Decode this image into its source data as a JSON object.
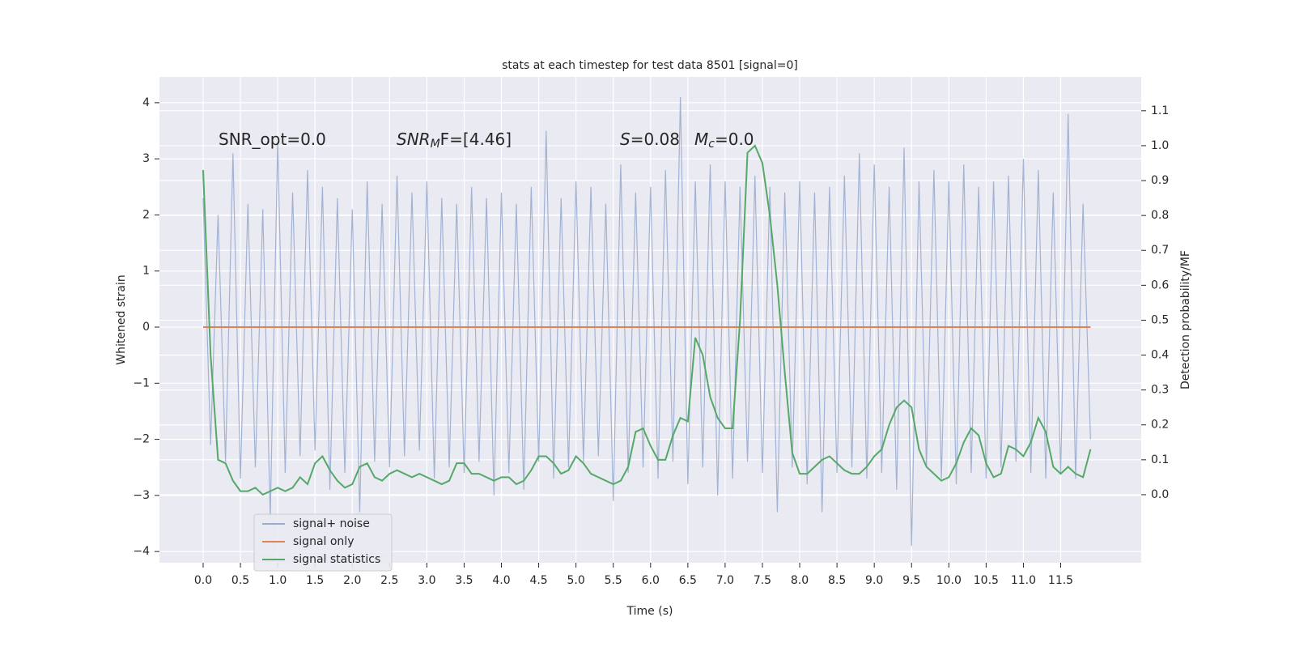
{
  "chart_data": {
    "type": "line",
    "title": "stats at each timestep for test data 8501 [signal=0]",
    "xlabel": "Time (s)",
    "ylabel": "Whitened strain",
    "y2label": "Detection probability/MF",
    "annotations": [
      {
        "text": "SNR_opt=0.0"
      },
      {
        "base": "SNR",
        "sub": "M",
        "rest": "F=[4.46]"
      },
      {
        "base": "S",
        "rest": "=0.08"
      },
      {
        "base": "M",
        "sub": "c",
        "rest": "=0.0"
      }
    ],
    "x": [
      0.0,
      0.1,
      0.2,
      0.3,
      0.4,
      0.5,
      0.6,
      0.7,
      0.8,
      0.9,
      1.0,
      1.1,
      1.2,
      1.3,
      1.4,
      1.5,
      1.6,
      1.7,
      1.8,
      1.9,
      2.0,
      2.1,
      2.2,
      2.3,
      2.4,
      2.5,
      2.6,
      2.7,
      2.8,
      2.9,
      3.0,
      3.1,
      3.2,
      3.3,
      3.4,
      3.5,
      3.6,
      3.7,
      3.8,
      3.9,
      4.0,
      4.1,
      4.2,
      4.3,
      4.4,
      4.5,
      4.6,
      4.7,
      4.8,
      4.9,
      5.0,
      5.1,
      5.2,
      5.3,
      5.4,
      5.5,
      5.6,
      5.7,
      5.8,
      5.9,
      6.0,
      6.1,
      6.2,
      6.3,
      6.4,
      6.5,
      6.6,
      6.7,
      6.8,
      6.9,
      7.0,
      7.1,
      7.2,
      7.3,
      7.4,
      7.5,
      7.6,
      7.7,
      7.8,
      7.9,
      8.0,
      8.1,
      8.2,
      8.3,
      8.4,
      8.5,
      8.6,
      8.7,
      8.8,
      8.9,
      9.0,
      9.1,
      9.2,
      9.3,
      9.4,
      9.5,
      9.6,
      9.7,
      9.8,
      9.9,
      10.0,
      10.1,
      10.2,
      10.3,
      10.4,
      10.5,
      10.6,
      10.7,
      10.8,
      10.9,
      11.0,
      11.1,
      11.2,
      11.3,
      11.4,
      11.5,
      11.6,
      11.7,
      11.8,
      11.9
    ],
    "series": [
      {
        "name": "signal+ noise",
        "color": "#9aaccf",
        "values": [
          2.3,
          -2.1,
          2.0,
          -2.4,
          3.1,
          -2.7,
          2.2,
          -2.5,
          2.1,
          -3.4,
          3.3,
          -2.6,
          2.4,
          -2.3,
          2.8,
          -2.2,
          2.5,
          -2.9,
          2.3,
          -2.6,
          2.1,
          -3.3,
          2.6,
          -2.4,
          2.2,
          -2.5,
          2.7,
          -2.3,
          2.4,
          -2.2,
          2.6,
          -2.7,
          2.3,
          -2.5,
          2.2,
          -2.6,
          2.5,
          -2.4,
          2.3,
          -3.0,
          2.4,
          -2.6,
          2.2,
          -2.9,
          2.5,
          -2.4,
          3.5,
          -2.7,
          2.3,
          -2.5,
          2.6,
          -2.4,
          2.5,
          -2.3,
          2.2,
          -3.1,
          2.9,
          -2.6,
          2.4,
          -2.5,
          2.5,
          -2.7,
          2.8,
          -2.4,
          4.1,
          -2.8,
          2.6,
          -2.5,
          2.9,
          -3.0,
          2.6,
          -2.7,
          2.5,
          -2.4,
          2.7,
          -2.6,
          2.5,
          -3.3,
          2.4,
          -2.5,
          2.6,
          -2.8,
          2.4,
          -3.3,
          2.5,
          -2.6,
          2.7,
          -2.5,
          3.1,
          -2.7,
          2.9,
          -2.6,
          2.5,
          -2.9,
          3.2,
          -3.9,
          2.6,
          -2.5,
          2.8,
          -2.7,
          2.6,
          -2.8,
          2.9,
          -2.6,
          2.5,
          -2.7,
          2.6,
          -2.5,
          2.7,
          -2.4,
          3.0,
          -2.6,
          2.8,
          -2.7,
          2.4,
          -2.6,
          3.8,
          -2.7,
          2.2,
          -2.0
        ]
      },
      {
        "name": "signal only",
        "color": "#dd8452",
        "values": [
          0,
          0,
          0,
          0,
          0,
          0,
          0,
          0,
          0,
          0,
          0,
          0,
          0,
          0,
          0,
          0,
          0,
          0,
          0,
          0,
          0,
          0,
          0,
          0,
          0,
          0,
          0,
          0,
          0,
          0,
          0,
          0,
          0,
          0,
          0,
          0,
          0,
          0,
          0,
          0,
          0,
          0,
          0,
          0,
          0,
          0,
          0,
          0,
          0,
          0,
          0,
          0,
          0,
          0,
          0,
          0,
          0,
          0,
          0,
          0,
          0,
          0,
          0,
          0,
          0,
          0,
          0,
          0,
          0,
          0,
          0,
          0,
          0,
          0,
          0,
          0,
          0,
          0,
          0,
          0,
          0,
          0,
          0,
          0,
          0,
          0,
          0,
          0,
          0,
          0,
          0,
          0,
          0,
          0,
          0,
          0,
          0,
          0,
          0,
          0,
          0,
          0,
          0,
          0,
          0,
          0,
          0,
          0,
          0,
          0,
          0,
          0,
          0,
          0,
          0,
          0,
          0,
          0,
          0,
          0
        ]
      },
      {
        "name": "signal statistics",
        "color": "#55a868",
        "axis": "y2",
        "values": [
          0.93,
          0.4,
          0.1,
          0.09,
          0.04,
          0.01,
          0.01,
          0.02,
          0.0,
          0.01,
          0.02,
          0.01,
          0.02,
          0.05,
          0.03,
          0.09,
          0.11,
          0.07,
          0.04,
          0.02,
          0.03,
          0.08,
          0.09,
          0.05,
          0.04,
          0.06,
          0.07,
          0.06,
          0.05,
          0.06,
          0.05,
          0.04,
          0.03,
          0.04,
          0.09,
          0.09,
          0.06,
          0.06,
          0.05,
          0.04,
          0.05,
          0.05,
          0.03,
          0.04,
          0.07,
          0.11,
          0.11,
          0.09,
          0.06,
          0.07,
          0.11,
          0.09,
          0.06,
          0.05,
          0.04,
          0.03,
          0.04,
          0.08,
          0.18,
          0.19,
          0.14,
          0.1,
          0.1,
          0.17,
          0.22,
          0.21,
          0.45,
          0.4,
          0.28,
          0.22,
          0.19,
          0.19,
          0.5,
          0.98,
          1.0,
          0.95,
          0.8,
          0.6,
          0.35,
          0.12,
          0.06,
          0.06,
          0.08,
          0.1,
          0.11,
          0.09,
          0.07,
          0.06,
          0.06,
          0.08,
          0.11,
          0.13,
          0.2,
          0.25,
          0.27,
          0.25,
          0.13,
          0.08,
          0.06,
          0.04,
          0.05,
          0.09,
          0.15,
          0.19,
          0.17,
          0.09,
          0.05,
          0.06,
          0.14,
          0.13,
          0.11,
          0.15,
          0.22,
          0.18,
          0.08,
          0.06,
          0.08,
          0.06,
          0.05,
          0.13
        ]
      }
    ],
    "xlim": [
      -0.586,
      12.58
    ],
    "xticks": [
      {
        "value": 0,
        "label": "0.0"
      },
      0.5,
      {
        "value": 1,
        "label": "1.0"
      },
      1.5,
      {
        "value": 2,
        "label": "2.0"
      },
      2.5,
      {
        "value": 3,
        "label": "3.0"
      },
      3.5,
      {
        "value": 4,
        "label": "4.0"
      },
      4.5,
      {
        "value": 5,
        "label": "5.0"
      },
      5.5,
      {
        "value": 6,
        "label": "6.0"
      },
      6.5,
      {
        "value": 7,
        "label": "7.0"
      },
      7.5,
      {
        "value": 8,
        "label": "8.0"
      },
      8.5,
      {
        "value": 9,
        "label": "9.0"
      },
      9.5,
      {
        "value": 10,
        "label": "10.0"
      },
      10.5,
      {
        "value": 11,
        "label": "11.0"
      },
      11.5
    ],
    "ylim": [
      -4.2,
      4.46
    ],
    "yticks": [
      {
        "value": -4,
        "label": "−4"
      },
      {
        "value": -3,
        "label": "−3"
      },
      {
        "value": -2,
        "label": "−2"
      },
      {
        "value": -1,
        "label": "−1"
      },
      0,
      1,
      2,
      3,
      4
    ],
    "y2lim": [
      -0.195,
      1.197
    ],
    "y2ticks": [
      {
        "value": 0,
        "label": "0.0"
      },
      0.1,
      0.2,
      0.3,
      0.4,
      0.5,
      0.6,
      0.7,
      0.8,
      0.9,
      {
        "value": 1,
        "label": "1.0"
      },
      1.1
    ],
    "grid": true,
    "legend": "lower left"
  }
}
